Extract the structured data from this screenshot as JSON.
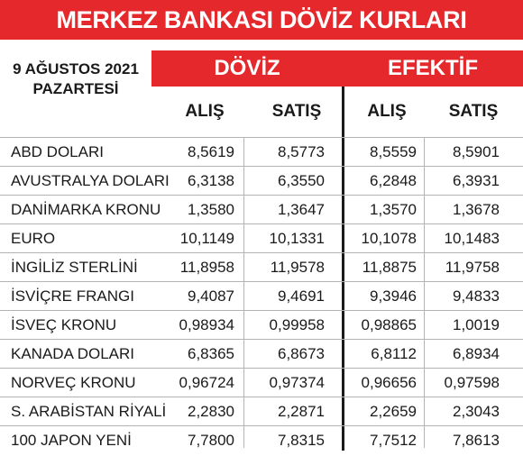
{
  "title": "MERKEZ BANKASI DÖVİZ KURLARI",
  "date": {
    "line1": "9 AĞUSTOS 2021",
    "line2": "PAZARTESİ"
  },
  "groups": {
    "doviz": "DÖVİZ",
    "efektif": "EFEKTİF"
  },
  "columns": {
    "doviz_alis": "ALIŞ",
    "doviz_satis": "SATIŞ",
    "efektif_alis": "ALIŞ",
    "efektif_satis": "SATIŞ"
  },
  "rows": [
    {
      "name": "ABD DOLARI",
      "doviz_alis": "8,5619",
      "doviz_satis": "8,5773",
      "efektif_alis": "8,5559",
      "efektif_satis": "8,5901"
    },
    {
      "name": "AVUSTRALYA DOLARI",
      "doviz_alis": "6,3138",
      "doviz_satis": "6,3550",
      "efektif_alis": "6,2848",
      "efektif_satis": "6,3931"
    },
    {
      "name": "DANİMARKA KRONU",
      "doviz_alis": "1,3580",
      "doviz_satis": "1,3647",
      "efektif_alis": "1,3570",
      "efektif_satis": "1,3678"
    },
    {
      "name": "EURO",
      "doviz_alis": "10,1149",
      "doviz_satis": "10,1331",
      "efektif_alis": "10,1078",
      "efektif_satis": "10,1483"
    },
    {
      "name": "İNGİLİZ STERLİNİ",
      "doviz_alis": "11,8958",
      "doviz_satis": "11,9578",
      "efektif_alis": "11,8875",
      "efektif_satis": "11,9758"
    },
    {
      "name": "İSVİÇRE FRANGI",
      "doviz_alis": "9,4087",
      "doviz_satis": "9,4691",
      "efektif_alis": "9,3946",
      "efektif_satis": "9,4833"
    },
    {
      "name": "İSVEÇ KRONU",
      "doviz_alis": "0,98934",
      "doviz_satis": "0,99958",
      "efektif_alis": "0,98865",
      "efektif_satis": "1,0019"
    },
    {
      "name": "KANADA DOLARI",
      "doviz_alis": "6,8365",
      "doviz_satis": "6,8673",
      "efektif_alis": "6,8112",
      "efektif_satis": "6,8934"
    },
    {
      "name": "NORVEÇ KRONU",
      "doviz_alis": "0,96724",
      "doviz_satis": "0,97374",
      "efektif_alis": "0,96656",
      "efektif_satis": "0,97598"
    },
    {
      "name": "S. ARABİSTAN RİYALİ",
      "doviz_alis": "2,2830",
      "doviz_satis": "2,2871",
      "efektif_alis": "2,2659",
      "efektif_satis": "2,3043"
    },
    {
      "name": "100 JAPON YENİ",
      "doviz_alis": "7,7800",
      "doviz_satis": "7,8315",
      "efektif_alis": "7,7512",
      "efektif_satis": "7,8613"
    }
  ]
}
